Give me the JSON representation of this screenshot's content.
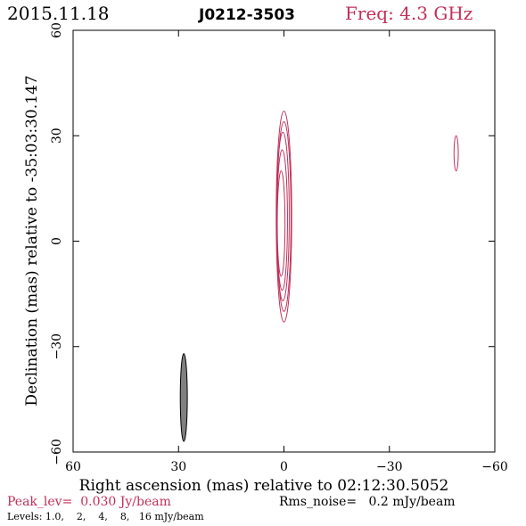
{
  "header": {
    "date": "2015.11.18",
    "source": "J0212-3503",
    "freq": "Freq: 4.3 GHz"
  },
  "footer": {
    "peak": "Peak_lev=  0.030 Jy/beam",
    "rms": "Rms_noise=   0.2 mJy/beam",
    "levels": "Levels: 1.0,    2,    4,    8,   16 mJy/beam"
  },
  "colors": {
    "contour": "#c0305a",
    "beam_fill": "#808080",
    "axes": "#000000"
  },
  "chart_data": {
    "type": "contour",
    "title": "J0212-3503",
    "xlabel": "Right ascension (mas) relative to 02:12:30.5052",
    "ylabel": "Declination (mas) relative to -35:03:30.147",
    "xlim": [
      60,
      -60
    ],
    "ylim": [
      -60,
      60
    ],
    "x_ticks": [
      60,
      30,
      0,
      -30,
      -60
    ],
    "y_ticks": [
      -60,
      -30,
      0,
      30,
      60
    ],
    "x_tick_labels": [
      "60",
      "30",
      "0",
      "−30",
      "−60"
    ],
    "y_tick_labels": [
      "−60",
      "−30",
      "0",
      "30",
      "60"
    ],
    "peak_jy_per_beam": 0.03,
    "rms_noise_mjy_per_beam": 0.2,
    "levels_mjy_per_beam": [
      1.0,
      2,
      4,
      8,
      16
    ],
    "contours": [
      {
        "level": 1.0,
        "x0": 0.0,
        "y0": 7.0,
        "rx": 2.2,
        "ry": 30.0
      },
      {
        "level": 2,
        "x0": 0.0,
        "y0": 7.0,
        "rx": 2.0,
        "ry": 27.0
      },
      {
        "level": 4,
        "x0": 0.3,
        "y0": 7.0,
        "rx": 1.8,
        "ry": 24.0
      },
      {
        "level": 8,
        "x0": 0.5,
        "y0": 6.0,
        "rx": 1.5,
        "ry": 20.0
      },
      {
        "level": 16,
        "x0": 0.8,
        "y0": 5.0,
        "rx": 1.1,
        "ry": 15.0
      },
      {
        "level": 1.0,
        "x0": -49.0,
        "y0": 25.0,
        "rx": 0.6,
        "ry": 5.0
      }
    ],
    "beam": {
      "x0": 28.5,
      "y0": -44.5,
      "rx": 1.0,
      "ry": 12.5
    }
  }
}
